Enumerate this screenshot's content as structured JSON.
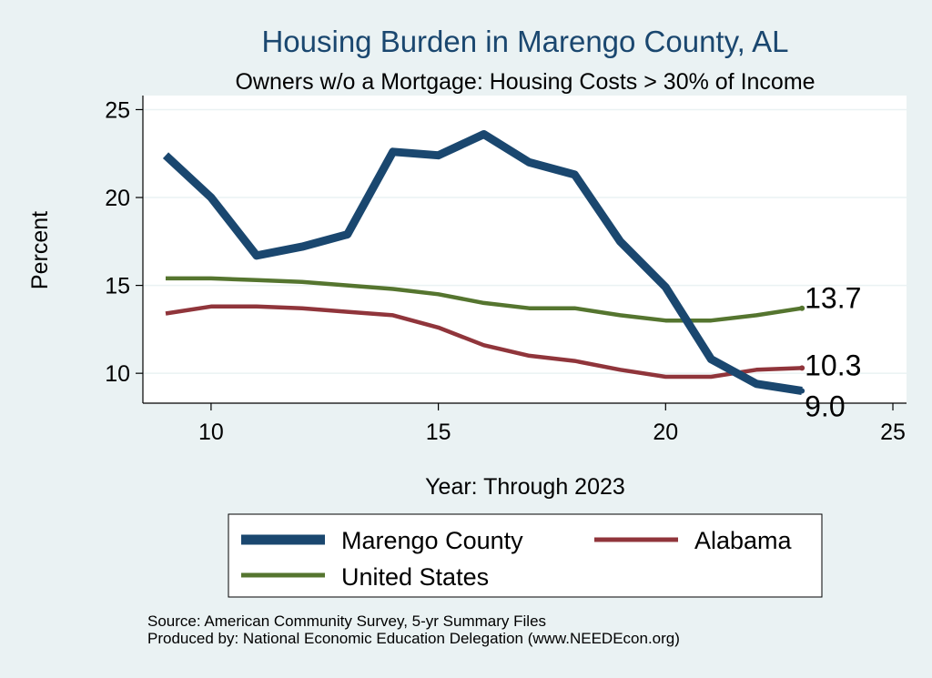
{
  "chart_data": {
    "type": "line",
    "title": "Housing Burden in Marengo County, AL",
    "subtitle": "Owners w/o a Mortgage: Housing Costs > 30% of Income",
    "xlabel": "Year: Through 2023",
    "ylabel": "Percent",
    "xlim": [
      8.5,
      25.3
    ],
    "ylim": [
      8.3,
      25.8
    ],
    "xticks": [
      10,
      15,
      20,
      25
    ],
    "yticks": [
      10,
      15,
      20,
      25
    ],
    "grid": true,
    "legend_position": "bottom",
    "series": [
      {
        "name": "Marengo County",
        "color": "#1a476f",
        "x": [
          9,
          10,
          11,
          12,
          13,
          14,
          15,
          16,
          17,
          18,
          19,
          20,
          21,
          22,
          23
        ],
        "values": [
          22.4,
          20.0,
          16.7,
          17.2,
          17.9,
          22.6,
          22.4,
          23.6,
          22.0,
          21.3,
          17.5,
          14.9,
          10.8,
          9.4,
          9.0
        ],
        "end_label": "9.0"
      },
      {
        "name": "Alabama",
        "color": "#90353b",
        "x": [
          9,
          10,
          11,
          12,
          13,
          14,
          15,
          16,
          17,
          18,
          19,
          20,
          21,
          22,
          23
        ],
        "values": [
          13.4,
          13.8,
          13.8,
          13.7,
          13.5,
          13.3,
          12.6,
          11.6,
          11.0,
          10.7,
          10.2,
          9.8,
          9.8,
          10.2,
          10.3
        ],
        "end_label": "10.3"
      },
      {
        "name": "United States",
        "color": "#55752f",
        "x": [
          9,
          10,
          11,
          12,
          13,
          14,
          15,
          16,
          17,
          18,
          19,
          20,
          21,
          22,
          23
        ],
        "values": [
          15.4,
          15.4,
          15.3,
          15.2,
          15.0,
          14.8,
          14.5,
          14.0,
          13.7,
          13.7,
          13.3,
          13.0,
          13.0,
          13.3,
          13.7
        ],
        "end_label": "13.7"
      }
    ]
  },
  "source_note": "Source: American Community Survey, 5-yr Summary Files",
  "produced_note": "Produced by: National Economic Education Delegation (www.NEEDEcon.org)",
  "colors": {
    "background": "#eaf2f3",
    "plot_background": "#ffffff",
    "grid": "#eaf2f3",
    "title": "#1a476f"
  }
}
